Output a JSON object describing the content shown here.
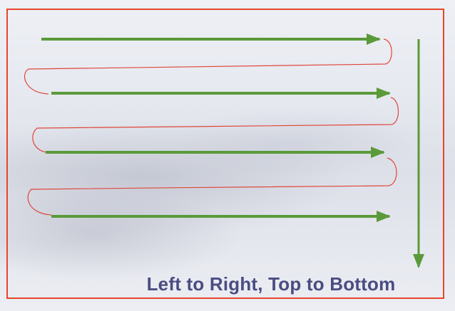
{
  "caption": "Left to Right, Top to Bottom",
  "colors": {
    "frame": "#e8452b",
    "arrow": "#5a9a3a",
    "connector": "#e0463a",
    "caption": "#4a4c82"
  }
}
